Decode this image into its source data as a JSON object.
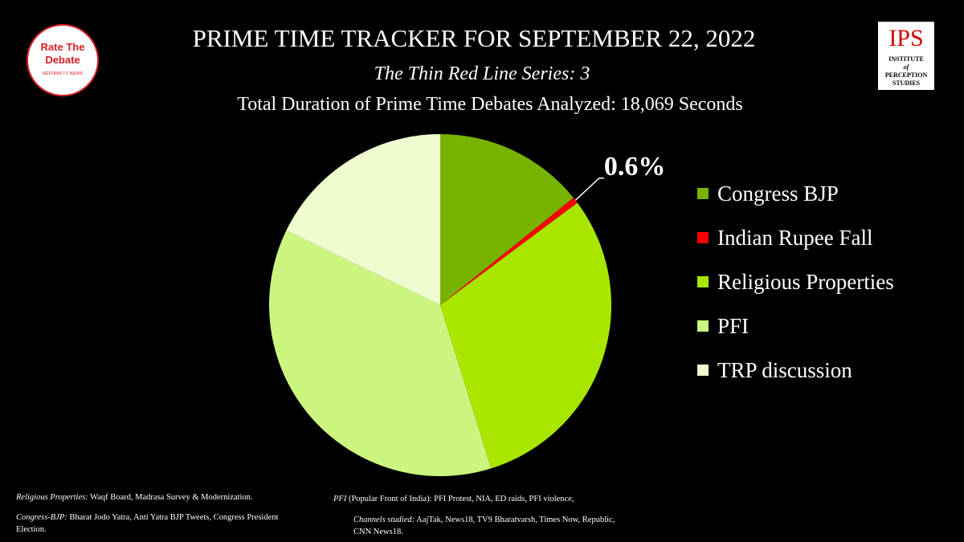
{
  "chart_data": {
    "type": "pie",
    "title": "PRIME TIME TRACKER FOR SEPTEMBER 22, 2022",
    "subtitle": "The Thin Red Line Series: 3",
    "caption": "Total Duration of Prime Time Debates Analyzed: 18,069 Seconds",
    "categories": [
      "Congress BJP",
      "Indian Rupee Fall",
      "Religious Properties",
      "PFI",
      "TRP discussion"
    ],
    "values": [
      14.2,
      0.6,
      30.4,
      37,
      17.8
    ],
    "value_labels": [
      null,
      "0.6%",
      null,
      null,
      null
    ],
    "colors": [
      "#77b300",
      "#ff0000",
      "#a8e600",
      "#ccf580",
      "#eefccf"
    ],
    "legend": "right"
  },
  "logos": {
    "left": [
      "Rate The",
      "Debate",
      "REFORM TV NEWS"
    ],
    "right": [
      "IPS",
      "INSTITUTE",
      "of",
      "PERCEPTION",
      "STUDIES"
    ]
  },
  "footnotes": [
    {
      "term": "Religious Properties:",
      "text": " Waqf Board, Madrasa Survey & Modernization."
    },
    {
      "term": "Congress-BJP:",
      "text": " Bharat Jodo Yatra, Anti Yatra BJP Tweets, Congress President Election."
    },
    {
      "term": "PFI",
      "text": " (Popular Front of India): PFI Protest, NIA, ED raids, PFI violence,"
    },
    {
      "term": "Channels studied:",
      "text": " AajTak, News18, TV9 Bharatvarsh, Times Now, Republic, CNN News18."
    }
  ]
}
